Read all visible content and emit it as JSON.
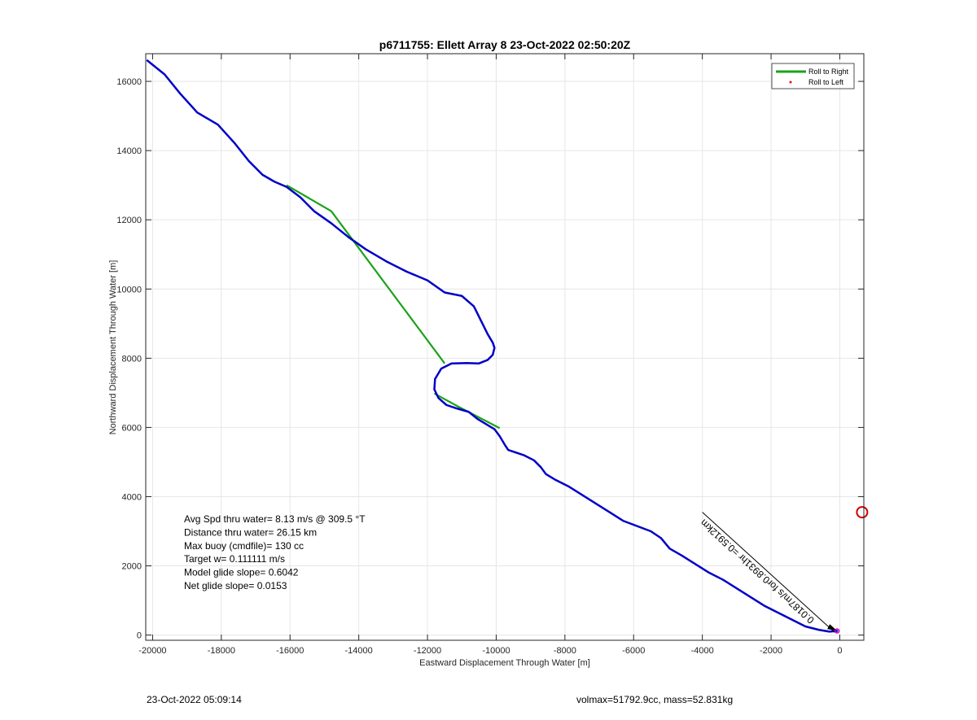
{
  "chart_data": {
    "type": "line",
    "title": "p6711755: Ellett Array 8 23-Oct-2022 02:50:20Z",
    "xlabel": "Eastward Displacement Through Water [m]",
    "ylabel": "Northward Displacement Through Water [m]",
    "xlim": [
      -20200,
      700
    ],
    "ylim": [
      -150,
      16800
    ],
    "xticks": [
      -20000,
      -18000,
      -16000,
      -14000,
      -12000,
      -10000,
      -8000,
      -6000,
      -4000,
      -2000,
      0
    ],
    "yticks": [
      0,
      2000,
      4000,
      6000,
      8000,
      10000,
      12000,
      14000,
      16000
    ],
    "grid": true,
    "legend_position": "top-right",
    "legend": [
      {
        "label": "Roll to Right",
        "color": "#1aa31a",
        "style": "line"
      },
      {
        "label": "Roll to Left",
        "color": "#ff0000",
        "style": "dot"
      }
    ],
    "series": [
      {
        "color": "#0000c8",
        "x": [
          -20150,
          -19650,
          -19200,
          -18700,
          -18100,
          -17600,
          -17200,
          -16800,
          -16450,
          -16100,
          -15700,
          -15300,
          -14800,
          -14300,
          -13800,
          -13200,
          -12600,
          -12000,
          -11500,
          -11000,
          -10650,
          -10450,
          -10250,
          -10100,
          -10050,
          -10100,
          -10250,
          -10500,
          -10850,
          -11300,
          -11600,
          -11780,
          -11800,
          -11680,
          -11450,
          -11150,
          -10800,
          -10550,
          -10300,
          -10050,
          -9900,
          -9750,
          -9650,
          -9500,
          -9200,
          -8900,
          -8700,
          -8550,
          -8300,
          -7900,
          -7500,
          -7100,
          -6700,
          -6300,
          -5900,
          -5500,
          -5200,
          -4950,
          -4600,
          -4200,
          -3800,
          -3400,
          -3000,
          -2600,
          -2200,
          -1800,
          -1400,
          -1000,
          -600,
          -300,
          -80
        ],
        "y": [
          16600,
          16200,
          15650,
          15100,
          14750,
          14200,
          13700,
          13300,
          13100,
          12950,
          12650,
          12250,
          11900,
          11500,
          11150,
          10800,
          10500,
          10250,
          9900,
          9800,
          9500,
          9100,
          8700,
          8450,
          8300,
          8100,
          7950,
          7850,
          7860,
          7850,
          7700,
          7400,
          7100,
          6850,
          6650,
          6550,
          6450,
          6250,
          6100,
          5950,
          5750,
          5500,
          5350,
          5300,
          5200,
          5050,
          4850,
          4650,
          4500,
          4300,
          4050,
          3800,
          3550,
          3300,
          3150,
          3000,
          2800,
          2500,
          2300,
          2050,
          1800,
          1600,
          1350,
          1100,
          850,
          650,
          450,
          250,
          150,
          100,
          120
        ]
      },
      {
        "name": "Roll to Right",
        "color": "#1aa31a",
        "segments": [
          {
            "x": [
              -16100,
              -14800,
              -11500
            ],
            "y": [
              13000,
              12250,
              7850
            ]
          },
          {
            "x": [
              -11800,
              -11100,
              -9900
            ],
            "y": [
              6980,
              6600,
              5980
            ]
          }
        ]
      }
    ],
    "markers": [
      {
        "label": "target-circle",
        "x": 650,
        "y": 3550,
        "color": "#cc0000"
      },
      {
        "label": "glider-start",
        "x": -80,
        "y": 120,
        "color": "#cc00cc"
      }
    ],
    "annotations": {
      "current_text": "0.0187m/s for0.8931hr =0.5912km",
      "current_arrow": {
        "x": [
          -4000,
          -150
        ],
        "y": [
          3550,
          80
        ]
      }
    }
  },
  "info": {
    "lines": [
      "Avg Spd thru water=  8.13 m/s @ 309.5 °T",
      "Distance thru water= 26.15 km",
      "Max buoy (cmdfile)= 130 cc",
      "Target w= 0.111111 m/s",
      "Model glide slope= 0.6042",
      "Net glide slope= 0.0153"
    ]
  },
  "footer": {
    "left": "23-Oct-2022 05:09:14",
    "right": "volmax=51792.9cc, mass=52.831kg"
  }
}
